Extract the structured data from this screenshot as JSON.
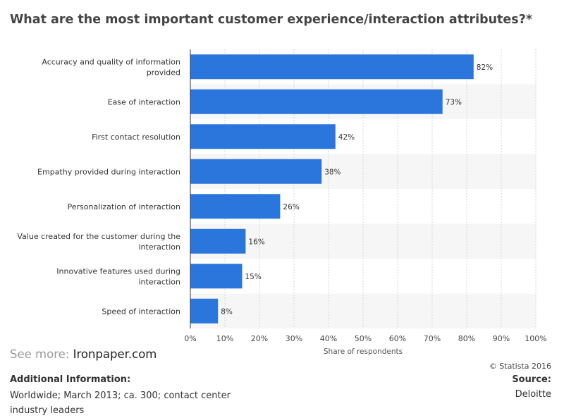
{
  "chart_data": {
    "type": "bar",
    "orientation": "horizontal",
    "title": "What are the most important customer experience/interaction attributes?*",
    "xlabel": "Share of respondents",
    "xlim": [
      0,
      100
    ],
    "x_ticks": [
      "0%",
      "10%",
      "20%",
      "30%",
      "40%",
      "50%",
      "60%",
      "70%",
      "80%",
      "90%",
      "100%"
    ],
    "categories": [
      "Accuracy and quality of information provided",
      "Ease of interaction",
      "First contact resolution",
      "Empathy provided during interaction",
      "Personalization of interaction",
      "Value created for the customer during the interaction",
      "Innovative features used during interaction",
      "Speed of interaction"
    ],
    "category_lines": [
      [
        "Accuracy and quality of information",
        "provided"
      ],
      [
        "Ease of interaction"
      ],
      [
        "First contact resolution"
      ],
      [
        "Empathy provided during interaction"
      ],
      [
        "Personalization of interaction"
      ],
      [
        "Value created for the customer during the",
        "interaction"
      ],
      [
        "Innovative features used during",
        "interaction"
      ],
      [
        "Speed of interaction"
      ]
    ],
    "values": [
      82,
      73,
      42,
      38,
      26,
      16,
      15,
      8
    ],
    "value_labels": [
      "82%",
      "73%",
      "42%",
      "38%",
      "26%",
      "16%",
      "15%",
      "8%"
    ],
    "grid": true,
    "bar_color": "#2a76dd",
    "stripe_color": "#f6f6f6"
  },
  "footer": {
    "see_more_prefix": "See more:",
    "see_more_brand": "Ironpaper.com",
    "copyright": "© Statista 2016",
    "additional_info_label": "Additional Information:",
    "additional_info_text": "Worldwide; March 2013; ca. 300; contact center industry leaders",
    "source_label": "Source:",
    "source_text": "Deloitte"
  }
}
